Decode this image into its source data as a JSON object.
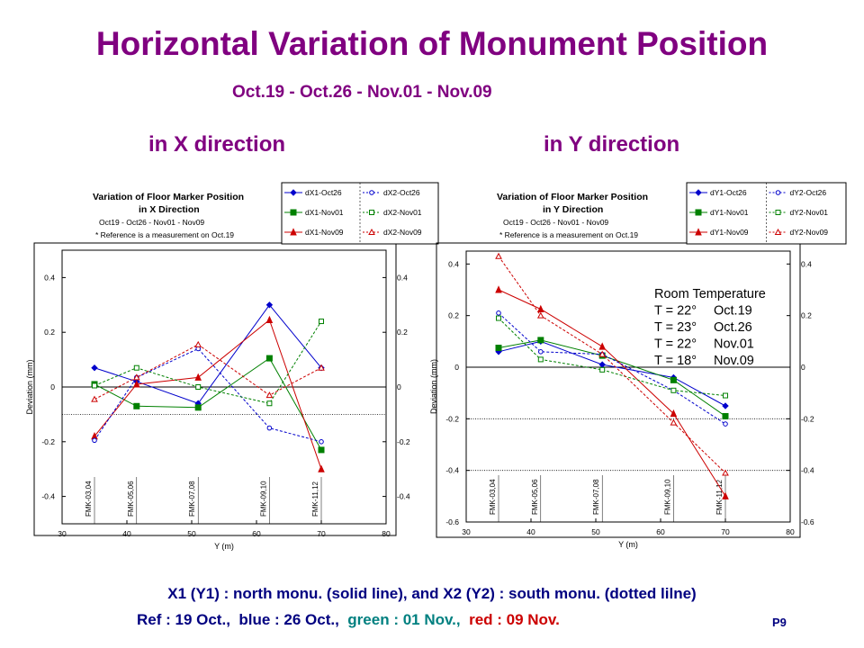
{
  "slide": {
    "title": "Horizontal Variation of Monument Position",
    "subtitle": "Oct.19 - Oct.26 - Nov.01 - Nov.09",
    "left_heading": "in X direction",
    "right_heading": "in Y direction",
    "footnote_line1": "X1 (Y1) : north monu. (solid line),  and X2 (Y2) : south monu. (dotted lilne)",
    "footnote_ref": "Ref : 19 Oct.,  ",
    "footnote_blue": "blue : 26 Oct.,  ",
    "footnote_green": "green : 01 Nov.,  ",
    "footnote_red": "red : 09 Nov.",
    "page_number": "P9",
    "colors": {
      "title": "#800080",
      "text": "#000080",
      "blue": "#0000cc",
      "green": "#008000",
      "red": "#cc0000",
      "teal": "#008080"
    }
  },
  "chart_data": [
    {
      "type": "line",
      "title": "Variation of Floor Marker Position",
      "subtitle": "in X Direction",
      "note1": "Oct19 - Oct26 - Nov01 - Nov09",
      "note2": "* Reference is a measurement on Oct.19",
      "xlabel": "Y (m)",
      "ylabel": "Deviation (mm)",
      "xlim": [
        30,
        80
      ],
      "ylim": [
        -0.5,
        0.5
      ],
      "xticks": [
        30,
        40,
        50,
        60,
        70,
        80
      ],
      "yticks": [
        -0.4,
        -0.2,
        0,
        0.2,
        0.4
      ],
      "ytick_labels": [
        "-0.4",
        "-0.2",
        "0",
        "0.2",
        "0.4"
      ],
      "dotted_reference_y": -0.1,
      "marker_labels": [
        {
          "x": 35,
          "label": "FMK-03,04"
        },
        {
          "x": 41.5,
          "label": "FMK-05,06"
        },
        {
          "x": 51,
          "label": "FMK-07,08"
        },
        {
          "x": 62,
          "label": "FMK-09,10"
        },
        {
          "x": 70,
          "label": "FMK-11,12"
        }
      ],
      "x": [
        35,
        41.5,
        51,
        62,
        70
      ],
      "series": [
        {
          "name": "dX1-Oct26",
          "color": "#0000cc",
          "style": "solid",
          "marker": "diamond",
          "values": [
            0.07,
            0.02,
            -0.06,
            0.3,
            0.07
          ]
        },
        {
          "name": "dX1-Nov01",
          "color": "#008000",
          "style": "solid",
          "marker": "square",
          "values": [
            0.01,
            -0.07,
            -0.075,
            0.105,
            -0.23
          ]
        },
        {
          "name": "dX1-Nov09",
          "color": "#cc0000",
          "style": "solid",
          "marker": "triangle",
          "values": [
            -0.18,
            0.01,
            0.035,
            0.245,
            -0.3
          ]
        },
        {
          "name": "dX2-Oct26",
          "color": "#0000cc",
          "style": "dotted",
          "marker": "circle",
          "values": [
            -0.195,
            0.035,
            0.14,
            -0.15,
            -0.2
          ]
        },
        {
          "name": "dX2-Nov01",
          "color": "#008000",
          "style": "dotted",
          "marker": "square-open",
          "values": [
            0.005,
            0.07,
            0.0,
            -0.06,
            0.24
          ]
        },
        {
          "name": "dX2-Nov09",
          "color": "#cc0000",
          "style": "dotted",
          "marker": "triangle-open",
          "values": [
            -0.045,
            0.035,
            0.155,
            -0.03,
            0.07
          ]
        }
      ]
    },
    {
      "type": "line",
      "title": "Variation of Floor Marker Position",
      "subtitle": "in Y Direction",
      "note1": "Oct19 - Oct26 - Nov01 - Nov09",
      "note2": "* Reference is a measurement on Oct.19",
      "xlabel": "Y (m)",
      "ylabel": "Deviation (mm)",
      "xlim": [
        30,
        80
      ],
      "ylim": [
        -0.6,
        0.45
      ],
      "xticks": [
        30,
        40,
        50,
        60,
        70,
        80
      ],
      "yticks": [
        -0.6,
        -0.4,
        -0.2,
        0,
        0.2,
        0.4
      ],
      "ytick_labels": [
        "-0.6",
        "-0.4",
        "-0.2",
        "0",
        "0.2",
        "0.4"
      ],
      "dotted_reference_y": -0.2,
      "dotted_reference_y2": -0.4,
      "marker_labels": [
        {
          "x": 35,
          "label": "FMK-03,04"
        },
        {
          "x": 41.5,
          "label": "FMK-05,06"
        },
        {
          "x": 51,
          "label": "FMK-07,08"
        },
        {
          "x": 62,
          "label": "FMK-09,10"
        },
        {
          "x": 70,
          "label": "FMK-11,12"
        }
      ],
      "annotation": {
        "title": "Room Temperature",
        "rows": [
          {
            "temp": "T = 22°",
            "date": "Oct.19"
          },
          {
            "temp": "T = 23°",
            "date": "Oct.26"
          },
          {
            "temp": "T = 22°",
            "date": "Nov.01"
          },
          {
            "temp": "T = 18°",
            "date": "Nov.09"
          }
        ]
      },
      "x": [
        35,
        41.5,
        51,
        62,
        70
      ],
      "series": [
        {
          "name": "dY1-Oct26",
          "color": "#0000cc",
          "style": "solid",
          "marker": "diamond",
          "values": [
            0.06,
            0.1,
            0.01,
            -0.04,
            -0.15
          ]
        },
        {
          "name": "dY1-Nov01",
          "color": "#008000",
          "style": "solid",
          "marker": "square",
          "values": [
            0.075,
            0.105,
            0.045,
            -0.05,
            -0.19
          ]
        },
        {
          "name": "dY1-Nov09",
          "color": "#cc0000",
          "style": "solid",
          "marker": "triangle",
          "values": [
            0.3,
            0.225,
            0.08,
            -0.18,
            -0.5
          ]
        },
        {
          "name": "dY2-Oct26",
          "color": "#0000cc",
          "style": "dotted",
          "marker": "circle",
          "values": [
            0.21,
            0.06,
            0.05,
            -0.09,
            -0.22
          ]
        },
        {
          "name": "dY2-Nov01",
          "color": "#008000",
          "style": "dotted",
          "marker": "square-open",
          "values": [
            0.19,
            0.03,
            -0.01,
            -0.09,
            -0.11
          ]
        },
        {
          "name": "dY2-Nov09",
          "color": "#cc0000",
          "style": "dotted",
          "marker": "triangle-open",
          "values": [
            0.43,
            0.2,
            0.05,
            -0.215,
            -0.41
          ]
        }
      ]
    }
  ]
}
